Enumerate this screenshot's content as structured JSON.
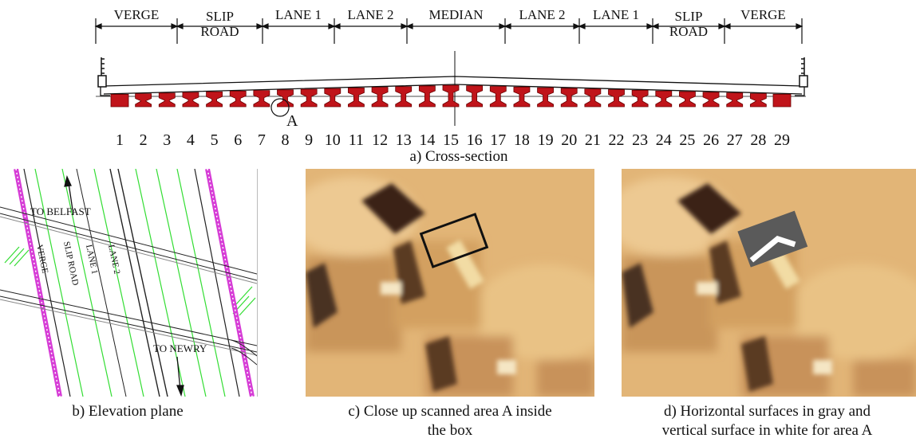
{
  "cross_section": {
    "lanes": [
      {
        "label": "VERGE"
      },
      {
        "label": "SLIP\nROAD"
      },
      {
        "label": "LANE 1"
      },
      {
        "label": "LANE 2"
      },
      {
        "label": "MEDIAN"
      },
      {
        "label": "LANE 2"
      },
      {
        "label": "LANE 1"
      },
      {
        "label": "SLIP\nROAD"
      },
      {
        "label": "VERGE"
      }
    ],
    "beam_numbers": [
      "1",
      "2",
      "3",
      "4",
      "5",
      "6",
      "7",
      "8",
      "9",
      "10",
      "11",
      "12",
      "13",
      "14",
      "15",
      "16",
      "17",
      "18",
      "19",
      "20",
      "21",
      "22",
      "23",
      "24",
      "25",
      "26",
      "27",
      "28",
      "29"
    ],
    "marker_label": "A",
    "beam_color": "#c0141a",
    "caption": "a) Cross-section"
  },
  "elevation": {
    "labels": {
      "to_belfast": "TO BELFAST",
      "to_newry": "TO NEWRY",
      "verge": "VERGE",
      "slip_road": "SLIP ROAD",
      "lane1": "LANE 1",
      "lane2": "LANE 2"
    },
    "caption": "b) Elevation plane",
    "colors": {
      "magenta": "#d63cd6",
      "green": "#33dd33"
    }
  },
  "closeup": {
    "caption_line1": "c) Close up scanned area A inside",
    "caption_line2": "the box"
  },
  "segmented": {
    "caption_line1": "d) Horizontal surfaces in gray and",
    "caption_line2": "vertical surface in white for area A"
  }
}
